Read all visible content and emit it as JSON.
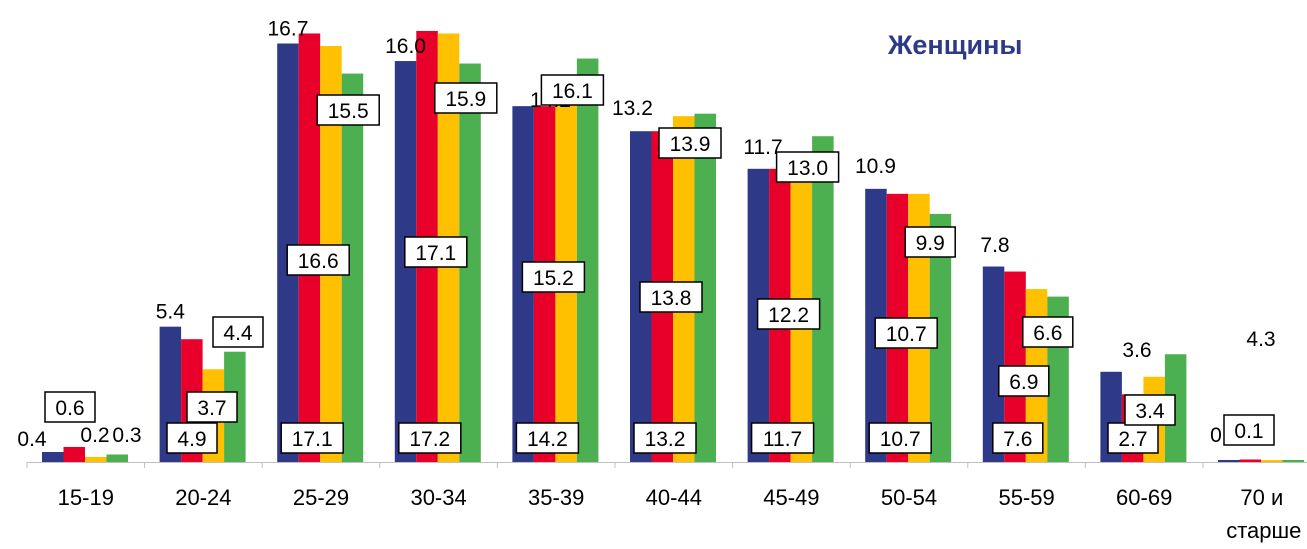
{
  "chart_data": {
    "type": "bar",
    "title": "Женщины",
    "categories": [
      "15-19",
      "20-24",
      "25-29",
      "30-34",
      "35-39",
      "40-44",
      "45-49",
      "50-54",
      "55-59",
      "60-69",
      "70 и старше"
    ],
    "series": [
      {
        "values": [
          0.4,
          5.4,
          16.7,
          16.0,
          14.2,
          13.2,
          11.7,
          10.9,
          7.8,
          3.6,
          0
        ],
        "color": "#2E3A87"
      },
      {
        "values": [
          0.6,
          4.9,
          17.1,
          17.2,
          14.2,
          13.2,
          11.7,
          10.7,
          7.6,
          2.7,
          0.1
        ],
        "color": "#E8002A"
      },
      {
        "values": [
          0.2,
          3.7,
          16.6,
          17.1,
          15.2,
          13.8,
          12.2,
          10.7,
          6.9,
          3.4,
          0
        ],
        "color": "#FFC000"
      },
      {
        "values": [
          0.3,
          4.4,
          15.5,
          15.9,
          16.1,
          13.9,
          13.0,
          9.9,
          6.6,
          4.3,
          0
        ],
        "color": "#4CAF50"
      }
    ],
    "labels": {
      "s1": [
        "0.4",
        "5.4",
        "16.7",
        "16.0",
        "14.2",
        "13.2",
        "11.7",
        "10.9",
        "7.8",
        "3.6",
        "0"
      ],
      "s2": [
        "0.6",
        "4.9",
        "17.1",
        "17.2",
        "14.2",
        "13.2",
        "11.7",
        "10.7",
        "7.6",
        "2.7",
        "0.1"
      ],
      "s3": [
        "0.2",
        "3.7",
        "16.6",
        "17.1",
        "15.2",
        "13.8",
        "12.2",
        "10.7",
        "6.9",
        "3.4",
        ""
      ],
      "s4": [
        "0.3",
        "4.4",
        "15.5",
        "15.9",
        "16.1",
        "13.9",
        "13.0",
        "9.9",
        "6.6",
        "4.3",
        ""
      ]
    },
    "xlabel": "",
    "ylabel": "",
    "ylim": [
      0,
      18
    ],
    "grid": false,
    "legend": "none"
  }
}
